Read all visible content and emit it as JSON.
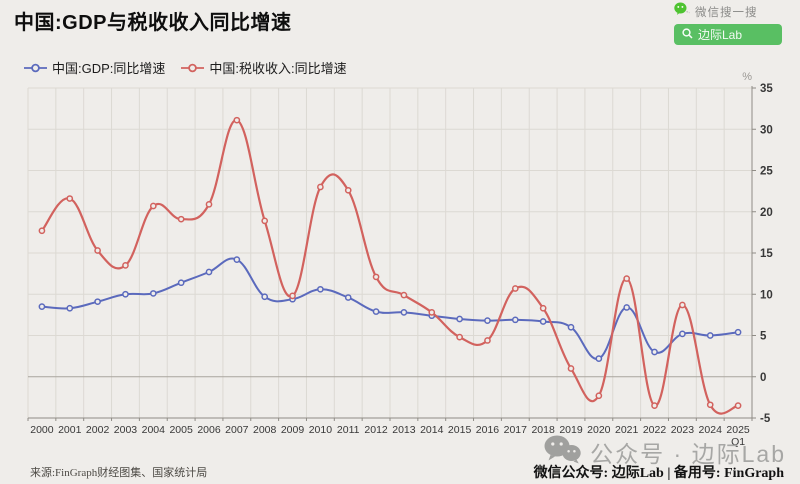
{
  "page": {
    "background": "#efedea"
  },
  "header": {
    "title": "中国:GDP与税收收入同比增速"
  },
  "wechat_search": {
    "label": "微信搜一搜",
    "query": "边际Lab",
    "box_color": "#59bf63",
    "logo_color": "#4ec331",
    "search_icon": "magnifier"
  },
  "chart_data": {
    "type": "line",
    "title": "中国:GDP与税收收入同比增速",
    "categories": [
      "2000",
      "2001",
      "2002",
      "2003",
      "2004",
      "2005",
      "2006",
      "2007",
      "2008",
      "2009",
      "2010",
      "2011",
      "2012",
      "2013",
      "2014",
      "2015",
      "2016",
      "2017",
      "2018",
      "2019",
      "2020",
      "2021",
      "2022",
      "2023",
      "2024",
      "2025"
    ],
    "last_category_sub": "Q1",
    "series": [
      {
        "name": "中国:GDP:同比增速",
        "color": "#5b6abd",
        "values": [
          8.5,
          8.3,
          9.1,
          10.0,
          10.1,
          11.4,
          12.7,
          14.2,
          9.7,
          9.4,
          10.6,
          9.6,
          7.9,
          7.8,
          7.4,
          7.0,
          6.8,
          6.9,
          6.7,
          6.0,
          2.2,
          8.4,
          3.0,
          5.2,
          5.0,
          5.4
        ]
      },
      {
        "name": "中国:税收收入:同比增速",
        "color": "#d2625e",
        "values": [
          17.7,
          21.6,
          15.3,
          13.5,
          20.7,
          19.1,
          20.9,
          31.1,
          18.9,
          9.8,
          23.0,
          22.6,
          12.1,
          9.9,
          7.8,
          4.8,
          4.4,
          10.7,
          8.3,
          1.0,
          -2.3,
          11.9,
          -3.5,
          8.7,
          -3.4,
          -3.5
        ]
      }
    ],
    "ylim": [
      -5,
      35
    ],
    "yticks": [
      -5,
      0,
      5,
      10,
      15,
      20,
      25,
      30,
      35
    ],
    "unit": "%",
    "grid": true,
    "legend_position": "top-left",
    "colors": {
      "grid": "#dcd9d3",
      "zero_line": "#a9a59e",
      "axis": "#8f8c86",
      "tick_text": "#383838",
      "unit_text": "#9b9894",
      "marker_fill": "#efedea"
    }
  },
  "footer": {
    "source": "来源:FinGraph财经图集、国家统计局",
    "watermark": "公众号 · 边际Lab",
    "account_line": "微信公众号: 边际Lab  |  备用号: FinGraph"
  }
}
